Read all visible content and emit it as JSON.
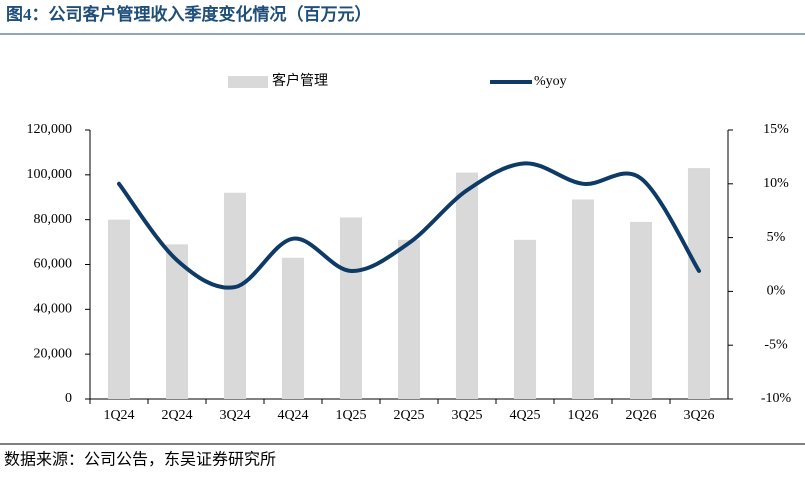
{
  "title": "图4：公司客户管理收入季度变化情况（百万元）",
  "source": "数据来源：公司公告，东吴证券研究所",
  "chart_data": {
    "type": "bar-line",
    "categories": [
      "1Q24",
      "2Q24",
      "3Q24",
      "4Q24",
      "1Q25",
      "2Q25",
      "3Q25",
      "4Q25",
      "1Q26",
      "2Q26",
      "3Q26"
    ],
    "series": [
      {
        "name": "客户管理",
        "type": "bar",
        "color": "#d9d9d9",
        "values": [
          80000,
          69000,
          92000,
          63000,
          81000,
          71000,
          101000,
          71000,
          89000,
          79000,
          103000
        ]
      },
      {
        "name": "%yoy",
        "type": "line",
        "axis": "y2",
        "color": "#0d3a66",
        "values": [
          10.0,
          2.9,
          0.4,
          4.9,
          1.9,
          4.5,
          9.4,
          11.9,
          10.0,
          10.5,
          1.9
        ]
      }
    ],
    "ylim": [
      0,
      120000
    ],
    "yticks": [
      {
        "value": 0,
        "label": "0"
      },
      {
        "value": 20000,
        "label": "20,000"
      },
      {
        "value": 40000,
        "label": "40,000"
      },
      {
        "value": 60000,
        "label": "60,000"
      },
      {
        "value": 80000,
        "label": "80,000"
      },
      {
        "value": 100000,
        "label": "100,000"
      },
      {
        "value": 120000,
        "label": "120,000"
      }
    ],
    "y2lim": [
      -10,
      15
    ],
    "y2ticks": [
      {
        "value": -10,
        "label": "-10%"
      },
      {
        "value": -5,
        "label": "-5%"
      },
      {
        "value": 0,
        "label": "0%"
      },
      {
        "value": 5,
        "label": "5%"
      },
      {
        "value": 10,
        "label": "10%"
      },
      {
        "value": 15,
        "label": "15%"
      }
    ],
    "grid": false,
    "legend": "top"
  }
}
